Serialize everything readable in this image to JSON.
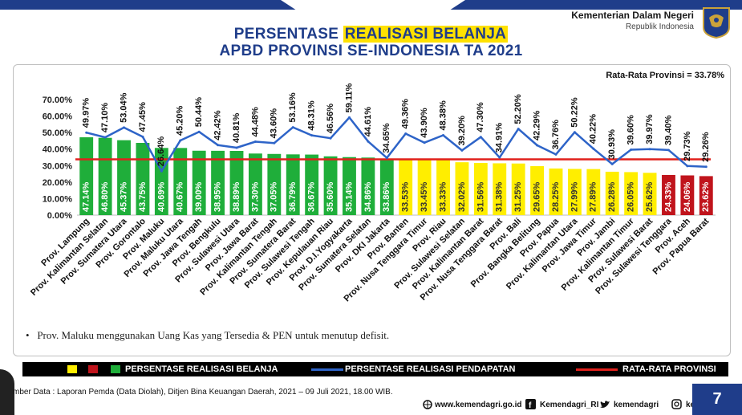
{
  "header": {
    "title_line1_pre": "PERSENTASE ",
    "title_line1_hl": "REALISASI BELANJA",
    "title_line2": "APBD PROVINSI SE-INDONESIA TA 2021",
    "ministry": "Kementerian Dalam Negeri",
    "country": "Republik Indonesia"
  },
  "rata_label": "Rata-Rata Provinsi = 33.78%",
  "note": "Prov. Maluku menggunakan Uang Kas yang Tersedia & PEN untuk menutup defisit.",
  "legend": {
    "belanja": "PERSENTASE REALISASI BELANJA",
    "pendapatan": "PERSENTASE REALISASI PENDAPATAN",
    "rata": "RATA-RATA PROVINSI"
  },
  "source": "mber Data : Laporan Pemda (Data Diolah), Ditjen Bina Keuangan Daerah, 2021 – 09 Juli 2021, 18.00 WIB.",
  "footer": {
    "website": "www.kemendagri.go.id",
    "facebook": "Kemendagri_RI",
    "twitter": "kemendagri",
    "instagram": "kemendagri",
    "page": "7"
  },
  "colors": {
    "green": "#1fae3a",
    "yellow": "#ffee00",
    "red": "#c0141c",
    "line": "#2e64c8",
    "avg": "#e0201c",
    "brand": "#1f3d8a"
  },
  "chart_data": {
    "type": "bar",
    "categories": [
      "Prov. Lampung",
      "Prov. Kalimantan Selatan",
      "Prov. Sumatera Utara",
      "Prov. Gorontalo",
      "Prov. Maluku",
      "Prov. Maluku Utara",
      "Prov. Jawa Tengah",
      "Prov. Bengkulu",
      "Prov. Sulawesi Utara",
      "Prov. Jawa Barat",
      "Prov. Kalimantan Tengah",
      "Prov. Sumatera Barat",
      "Prov. Sulawesi Tengah",
      "Prov. Kepulauan Riau",
      "Prov. D.I.Yogyakarta",
      "Prov. Sumatera Selatan",
      "Prov. DKI Jakarta",
      "Prov. Banten",
      "Prov. Nusa Tenggara Timur",
      "Prov. Riau",
      "Prov. Sulawesi Selatan",
      "Prov. Kalimantan Barat",
      "Prov. Nusa Tenggara Barat",
      "Prov. Bali",
      "Prov. Bangka Belitung",
      "Prov. Papua",
      "Prov. Kalimantan Utara",
      "Prov. Jawa Timur",
      "Prov. Jambi",
      "Prov. Kalimantan Timur",
      "Prov. Sulawesi Barat",
      "Prov. Sulawesi Tenggara",
      "Prov. Aceh",
      "Prov. Papua Barat"
    ],
    "series": [
      {
        "name": "PERSENTASE REALISASI BELANJA",
        "type": "bar",
        "values": [
          47.14,
          46.8,
          45.37,
          43.75,
          40.69,
          40.67,
          39.0,
          38.95,
          38.89,
          37.3,
          37.05,
          36.79,
          36.67,
          35.6,
          35.14,
          34.86,
          33.86,
          33.53,
          33.45,
          33.33,
          32.02,
          31.56,
          31.38,
          31.25,
          29.65,
          28.25,
          27.99,
          27.89,
          26.28,
          26.05,
          25.62,
          24.33,
          24.06,
          23.62
        ],
        "labels": [
          "47.14%",
          "46.80%",
          "45.37%",
          "43.75%",
          "40.69%",
          "40.67%",
          "39.00%",
          "38.95%",
          "38.89%",
          "37.30%",
          "37.05%",
          "36.79%",
          "36.67%",
          "35.60%",
          "35.14%",
          "34.86%",
          "33.86%",
          "33.53%",
          "33.45%",
          "33.33%",
          "32.02%",
          "31.56%",
          "31.38%",
          "31.25%",
          "29.65%",
          "28.25%",
          "27.99%",
          "27.89%",
          "26.28%",
          "26.05%",
          "25.62%",
          "24.33%",
          "24.06%",
          "23.62%"
        ],
        "colors": [
          "green",
          "green",
          "green",
          "green",
          "green",
          "green",
          "green",
          "green",
          "green",
          "green",
          "green",
          "green",
          "green",
          "green",
          "green",
          "green",
          "green",
          "yellow",
          "yellow",
          "yellow",
          "yellow",
          "yellow",
          "yellow",
          "yellow",
          "yellow",
          "yellow",
          "yellow",
          "yellow",
          "yellow",
          "yellow",
          "yellow",
          "red",
          "red",
          "red"
        ]
      },
      {
        "name": "PERSENTASE REALISASI PENDAPATAN",
        "type": "line",
        "values": [
          49.97,
          47.1,
          53.04,
          47.45,
          26.64,
          45.2,
          50.44,
          42.42,
          40.81,
          44.48,
          43.6,
          53.16,
          48.31,
          46.56,
          59.11,
          44.61,
          34.65,
          49.36,
          43.9,
          48.38,
          39.2,
          47.3,
          34.91,
          52.2,
          42.29,
          36.76,
          50.22,
          40.22,
          30.93,
          39.6,
          39.97,
          39.4,
          29.73,
          29.26
        ],
        "labels": [
          "49.97%",
          "47.10%",
          "53.04%",
          "47.45%",
          "26.64%",
          "45.20%",
          "50.44%",
          "42.42%",
          "40.81%",
          "44.48%",
          "43.60%",
          "53.16%",
          "48.31%",
          "46.56%",
          "59.11%",
          "44.61%",
          "34.65%",
          "49.36%",
          "43.90%",
          "48.38%",
          "39.20%",
          "47.30%",
          "34.91%",
          "52.20%",
          "42.29%",
          "36.76%",
          "50.22%",
          "40.22%",
          "30.93%",
          "39.60%",
          "39.97%",
          "39.40%",
          "29.73%",
          "29.26%"
        ]
      }
    ],
    "average": 33.78,
    "yticks": [
      "0.00%",
      "10.00%",
      "20.00%",
      "30.00%",
      "40.00%",
      "50.00%",
      "60.00%",
      "70.00%"
    ],
    "ylim": [
      0,
      70
    ]
  }
}
